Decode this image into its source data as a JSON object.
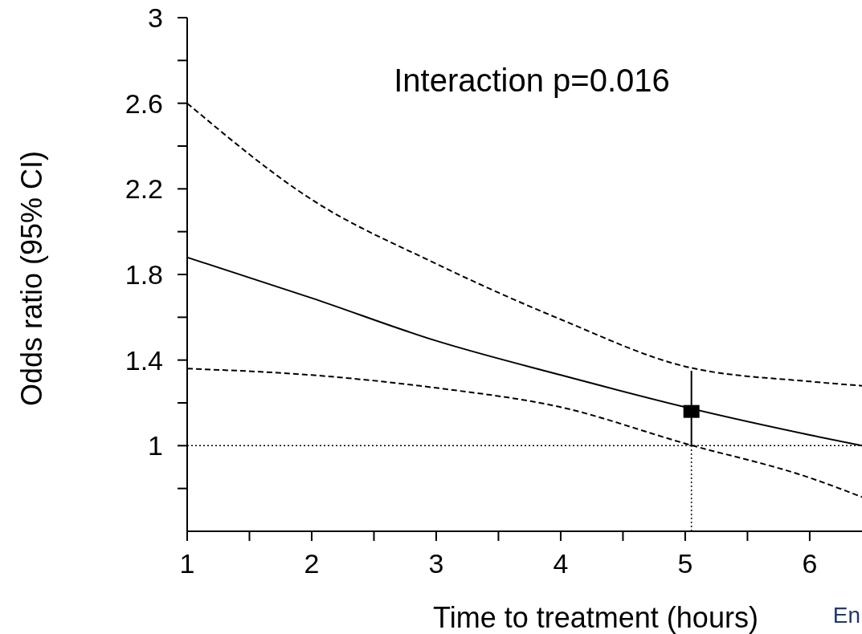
{
  "chart_data": {
    "type": "line",
    "xlabel": "Time to treatment (hours)",
    "ylabel": "Odds ratio (95% CI)",
    "annotations": [
      "Interaction p=0.016",
      "En"
    ],
    "xlim": [
      1,
      6.42
    ],
    "ylim": [
      0.6,
      3
    ],
    "xticks": [
      1,
      {
        "value": 1.5,
        "label": null
      },
      2,
      {
        "value": 2.5,
        "label": null
      },
      3,
      {
        "value": 3.5,
        "label": null
      },
      4,
      {
        "value": 4.5,
        "label": null
      },
      5,
      {
        "value": 5.5,
        "label": null
      },
      6
    ],
    "yticks": [
      {
        "value": 0.8,
        "label": null
      },
      1,
      {
        "value": 1.2,
        "label": null
      },
      1.4,
      {
        "value": 1.6,
        "label": null
      },
      1.8,
      {
        "value": 2.0,
        "label": null
      },
      2.2,
      {
        "value": 2.4,
        "label": null
      },
      2.6,
      {
        "value": 2.8,
        "label": null
      },
      3
    ],
    "grid": false,
    "ref_lines": [
      {
        "axis": "y",
        "value": 1,
        "line_style": "dotted",
        "color": "#000000"
      },
      {
        "axis": "x",
        "value": 5.05,
        "line_style": "dotted",
        "color": "#000000"
      }
    ],
    "series": [
      {
        "type": "line",
        "color": "#000000",
        "line_style": "solid",
        "x": [
          1,
          2,
          3,
          4,
          5,
          6,
          6.42
        ],
        "values": [
          1.88,
          1.69,
          1.49,
          1.33,
          1.18,
          1.05,
          1.0
        ]
      },
      {
        "type": "line",
        "color": "#000000",
        "line_style": "dashed",
        "x": [
          1,
          2,
          3,
          4,
          5,
          6,
          6.42
        ],
        "values": [
          2.6,
          2.15,
          1.85,
          1.59,
          1.37,
          1.3,
          1.28
        ]
      },
      {
        "type": "line",
        "color": "#000000",
        "line_style": "dashed",
        "x": [
          1,
          2,
          3,
          4,
          5,
          6,
          6.42
        ],
        "values": [
          1.36,
          1.33,
          1.27,
          1.18,
          1.01,
          0.85,
          0.76
        ]
      },
      {
        "type": "scatter",
        "color": "#000000",
        "marker": "square",
        "x": [
          5.05
        ],
        "values": [
          1.16
        ],
        "errors": [
          [
            1.0,
            1.35
          ]
        ]
      }
    ]
  }
}
